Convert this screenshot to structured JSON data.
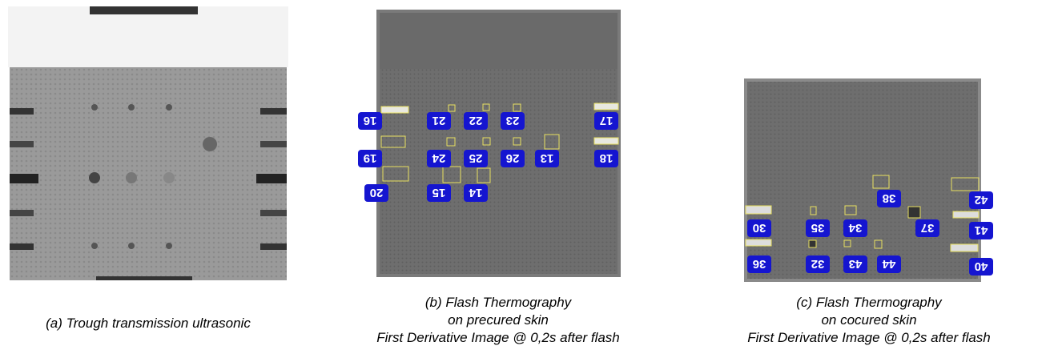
{
  "panels": [
    {
      "caption": [
        "(a) Trough transmission ultrasonic"
      ],
      "labels": []
    },
    {
      "caption": [
        "(b) Flash Thermography",
        "on precured skin",
        "First Derivative Image @ 0,2s after flash"
      ],
      "labels": [
        "16",
        "21",
        "22",
        "23",
        "17",
        "19",
        "24",
        "25",
        "26",
        "13",
        "18",
        "20",
        "15",
        "14"
      ]
    },
    {
      "caption": [
        "(c) Flash Thermography",
        "on cocured skin",
        "First Derivative Image @ 0,2s after flash"
      ],
      "labels": [
        "38",
        "42",
        "30",
        "35",
        "34",
        "37",
        "41",
        "36",
        "32",
        "43",
        "44",
        "40"
      ]
    }
  ]
}
